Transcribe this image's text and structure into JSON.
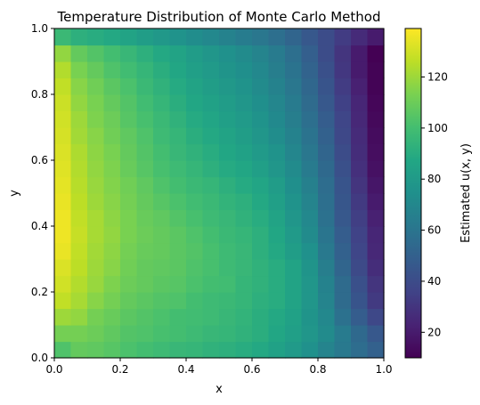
{
  "chart_data": {
    "type": "heatmap",
    "title": "Temperature Distribution of Monte Carlo Method",
    "xlabel": "x",
    "ylabel": "y",
    "xlim": [
      0.0,
      1.0
    ],
    "ylim": [
      0.0,
      1.0
    ],
    "x_ticks": [
      "0.0",
      "0.2",
      "0.4",
      "0.6",
      "0.8",
      "1.0"
    ],
    "y_ticks": [
      "0.0",
      "0.2",
      "0.4",
      "0.6",
      "0.8",
      "1.0"
    ],
    "colorbar": {
      "label": "Estimated u(x, y)",
      "ticks": [
        "20",
        "40",
        "60",
        "80",
        "100",
        "120"
      ],
      "range": [
        10,
        139
      ],
      "colormap": "viridis"
    },
    "grid_size": [
      20,
      20
    ],
    "values": [
      [
        103,
        108,
        107,
        105,
        102,
        100,
        98,
        96,
        95,
        93,
        92,
        90,
        88,
        84,
        80,
        75,
        68,
        62,
        56,
        50
      ],
      [
        112,
        112,
        110,
        107,
        104,
        103,
        101,
        100,
        98,
        96,
        95,
        93,
        91,
        87,
        83,
        78,
        72,
        63,
        54,
        46
      ],
      [
        120,
        118,
        112,
        109,
        106,
        104,
        102,
        100,
        99,
        98,
        96,
        94,
        91,
        88,
        84,
        77,
        70,
        58,
        48,
        38
      ],
      [
        127,
        122,
        116,
        112,
        108,
        106,
        104,
        103,
        100,
        98,
        97,
        95,
        92,
        90,
        85,
        78,
        68,
        55,
        44,
        32
      ],
      [
        130,
        124,
        119,
        114,
        110,
        108,
        106,
        105,
        102,
        100,
        99,
        95,
        93,
        90,
        85,
        78,
        67,
        55,
        42,
        30
      ],
      [
        132,
        126,
        120,
        116,
        111,
        108,
        107,
        106,
        103,
        101,
        98,
        96,
        93,
        90,
        85,
        77,
        65,
        52,
        39,
        27
      ],
      [
        135,
        127,
        121,
        117,
        112,
        109,
        108,
        106,
        104,
        101,
        98,
        96,
        92,
        88,
        82,
        75,
        62,
        50,
        37,
        25
      ],
      [
        136,
        128,
        122,
        118,
        113,
        110,
        108,
        106,
        103,
        100,
        97,
        95,
        92,
        87,
        80,
        72,
        60,
        48,
        36,
        24
      ],
      [
        136,
        127,
        122,
        117,
        113,
        109,
        107,
        104,
        101,
        98,
        96,
        93,
        90,
        85,
        78,
        70,
        58,
        46,
        34,
        22
      ],
      [
        135,
        126,
        120,
        116,
        112,
        108,
        105,
        102,
        99,
        97,
        94,
        92,
        88,
        83,
        76,
        68,
        57,
        45,
        32,
        20
      ],
      [
        134,
        125,
        119,
        115,
        111,
        107,
        103,
        100,
        97,
        95,
        92,
        89,
        86,
        81,
        74,
        66,
        56,
        44,
        30,
        18
      ],
      [
        133,
        124,
        118,
        114,
        109,
        105,
        101,
        98,
        95,
        92,
        89,
        87,
        83,
        78,
        72,
        63,
        54,
        42,
        28,
        16
      ],
      [
        132,
        123,
        117,
        113,
        108,
        104,
        100,
        96,
        93,
        90,
        87,
        84,
        80,
        76,
        69,
        61,
        52,
        40,
        27,
        15
      ],
      [
        131,
        121,
        116,
        111,
        107,
        103,
        98,
        95,
        91,
        88,
        85,
        82,
        78,
        73,
        67,
        59,
        50,
        38,
        26,
        14
      ],
      [
        130,
        120,
        114,
        110,
        105,
        101,
        97,
        93,
        89,
        86,
        83,
        80,
        76,
        71,
        65,
        57,
        48,
        37,
        25,
        13
      ],
      [
        129,
        118,
        113,
        108,
        104,
        99,
        95,
        91,
        87,
        84,
        81,
        78,
        74,
        69,
        63,
        55,
        46,
        35,
        24,
        12
      ],
      [
        127,
        116,
        111,
        106,
        102,
        97,
        93,
        89,
        85,
        82,
        79,
        76,
        72,
        67,
        61,
        53,
        44,
        33,
        22,
        11
      ],
      [
        124,
        113,
        108,
        103,
        99,
        95,
        91,
        87,
        83,
        80,
        77,
        74,
        70,
        65,
        59,
        51,
        42,
        31,
        20,
        11
      ],
      [
        118,
        108,
        104,
        100,
        96,
        92,
        88,
        85,
        81,
        78,
        75,
        72,
        68,
        63,
        57,
        49,
        40,
        30,
        20,
        10
      ],
      [
        97,
        92,
        90,
        88,
        85,
        82,
        79,
        76,
        73,
        70,
        67,
        64,
        61,
        57,
        52,
        46,
        40,
        33,
        26,
        20
      ]
    ]
  }
}
